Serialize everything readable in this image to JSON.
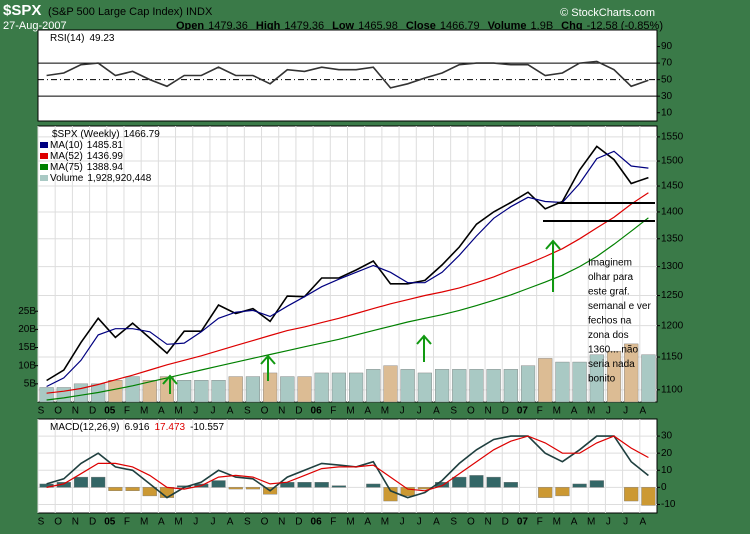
{
  "header": {
    "symbol": "$SPX",
    "name": "(S&P 500 Large Cap Index) INDX",
    "date": "27-Aug-2007",
    "copyright": "© StockCharts.com",
    "stats": [
      {
        "label": "Open",
        "value": 1479.36
      },
      {
        "label": "High",
        "value": 1479.36
      },
      {
        "label": "Low",
        "value": 1465.98
      },
      {
        "label": "Close",
        "value": 1466.79
      },
      {
        "label": "Volume",
        "value": "1.9B"
      },
      {
        "label": "Chg",
        "value": "-12.58 (-0.85%)"
      }
    ]
  },
  "chart_data": [
    {
      "type": "line",
      "title": "RSI(14)",
      "ylim": [
        0,
        110
      ],
      "yticks": [
        90,
        70,
        50,
        30,
        10
      ],
      "reference_lines": [
        70,
        30
      ],
      "midline": 50,
      "grid": false,
      "series": [
        {
          "name": "RSI(14)",
          "color": "#333333",
          "values": [
            55,
            58,
            68,
            70,
            55,
            60,
            50,
            42,
            55,
            55,
            65,
            55,
            55,
            45,
            62,
            60,
            65,
            62,
            62,
            65,
            40,
            45,
            52,
            58,
            68,
            70,
            70,
            68,
            68,
            55,
            58,
            70,
            72,
            62,
            42,
            49.23
          ]
        }
      ]
    },
    {
      "type": "line",
      "title": "$SPX (Weekly)",
      "log_scale": true,
      "grid": true,
      "ylim": [
        1082,
        1573
      ],
      "yticks": [
        1100,
        1150,
        1200,
        1250,
        1300,
        1350,
        1400,
        1450,
        1500,
        1550
      ],
      "y2lim": [
        0,
        76
      ],
      "y2ticks": [
        {
          "value": 5,
          "label": "5B"
        },
        {
          "value": 10,
          "label": "10B"
        },
        {
          "value": 15,
          "label": "15B"
        },
        {
          "value": 20,
          "label": "20B"
        },
        {
          "value": 25,
          "label": "25B"
        }
      ],
      "categories": [
        "S",
        "O",
        "N",
        "D",
        "05",
        "F",
        "M",
        "A",
        "M",
        "J",
        "J",
        "A",
        "S",
        "O",
        "N",
        "D",
        "06",
        "F",
        "M",
        "A",
        "M",
        "J",
        "J",
        "A",
        "S",
        "O",
        "N",
        "D",
        "07",
        "F",
        "M",
        "A",
        "M",
        "J",
        "J",
        "A"
      ],
      "support_levels": [
        1417,
        1383
      ],
      "annotation": [
        "Imaginem",
        "olhar para",
        "este graf.",
        "semanal e ver",
        "fechos na",
        "zona dos",
        "1360... não",
        "seria nada",
        "bonito"
      ],
      "series": [
        {
          "name": "$SPX (Weekly)",
          "color": "#000000",
          "values": [
            1114,
            1130,
            1173,
            1212,
            1181,
            1204,
            1180,
            1156,
            1191,
            1191,
            1234,
            1220,
            1228,
            1207,
            1249,
            1248,
            1280,
            1280,
            1294,
            1310,
            1270,
            1270,
            1276,
            1303,
            1335,
            1377,
            1400,
            1418,
            1438,
            1406,
            1420,
            1482,
            1530,
            1503,
            1455,
            1466.79
          ]
        },
        {
          "name": "MA(10)",
          "color": "#000080",
          "values": [
            1105,
            1118,
            1145,
            1185,
            1195,
            1195,
            1190,
            1170,
            1172,
            1190,
            1212,
            1222,
            1225,
            1215,
            1232,
            1248,
            1265,
            1278,
            1290,
            1302,
            1290,
            1272,
            1272,
            1290,
            1320,
            1355,
            1388,
            1410,
            1428,
            1420,
            1418,
            1455,
            1505,
            1520,
            1490,
            1485.81
          ]
        },
        {
          "name": "MA(52)",
          "color": "#dd0000",
          "values": [
            1095,
            1098,
            1102,
            1108,
            1115,
            1122,
            1130,
            1138,
            1145,
            1152,
            1160,
            1168,
            1176,
            1184,
            1192,
            1198,
            1205,
            1212,
            1220,
            1228,
            1236,
            1243,
            1250,
            1256,
            1263,
            1272,
            1282,
            1294,
            1305,
            1318,
            1332,
            1350,
            1370,
            1390,
            1415,
            1436.99
          ]
        },
        {
          "name": "MA(75)",
          "color": "#008000",
          "values": [
            1085,
            1088,
            1092,
            1096,
            1101,
            1106,
            1112,
            1118,
            1124,
            1130,
            1136,
            1142,
            1148,
            1154,
            1160,
            1166,
            1172,
            1178,
            1185,
            1192,
            1199,
            1206,
            1212,
            1218,
            1225,
            1233,
            1242,
            1251,
            1262,
            1273,
            1285,
            1300,
            1318,
            1340,
            1364,
            1388.94
          ]
        },
        {
          "name": "Volume",
          "kind": "bar",
          "axis": "y2",
          "color": "#a9c9c4",
          "alt_color": "#dcbc94",
          "last_label": "1,928,920,448",
          "values": [
            4,
            4,
            5,
            5,
            6,
            7,
            6,
            7,
            6,
            6,
            6,
            7,
            7,
            8,
            7,
            7,
            8,
            8,
            8,
            9,
            10,
            9,
            8,
            9,
            9,
            9,
            9,
            9,
            10,
            12,
            11,
            11,
            13,
            14,
            16,
            13
          ]
        }
      ]
    },
    {
      "type": "line",
      "title": "MACD(12,26,9)",
      "grid": true,
      "ylim": [
        -15,
        40
      ],
      "yticks": [
        30,
        20,
        10,
        0,
        -10
      ],
      "categories": [
        "S",
        "O",
        "N",
        "D",
        "05",
        "F",
        "M",
        "A",
        "M",
        "J",
        "J",
        "A",
        "S",
        "O",
        "N",
        "D",
        "06",
        "F",
        "M",
        "A",
        "M",
        "J",
        "J",
        "A",
        "S",
        "O",
        "N",
        "D",
        "07",
        "F",
        "M",
        "A",
        "M",
        "J",
        "J",
        "A"
      ],
      "series": [
        {
          "name": "MACD",
          "color": "#1f3f3f",
          "values": [
            2,
            5,
            14,
            20,
            12,
            10,
            2,
            -6,
            0,
            3,
            10,
            6,
            5,
            -2,
            6,
            10,
            14,
            13,
            12,
            15,
            -2,
            -6,
            -3,
            4,
            14,
            22,
            28,
            30,
            30,
            20,
            15,
            22,
            30,
            30,
            15,
            6.916
          ]
        },
        {
          "name": "Signal",
          "color": "#dd0000",
          "values": [
            0,
            2,
            8,
            14,
            14,
            12,
            7,
            0,
            -1,
            1,
            6,
            7,
            6,
            2,
            3,
            7,
            11,
            12,
            12,
            13,
            6,
            -1,
            -2,
            1,
            8,
            15,
            22,
            27,
            30,
            26,
            20,
            20,
            26,
            30,
            23,
            17.473
          ]
        },
        {
          "name": "Histogram",
          "kind": "bar",
          "color": "#336666",
          "alt_color": "#cc9933",
          "values": [
            2,
            3,
            6,
            6,
            -2,
            -2,
            -5,
            -6,
            1,
            2,
            4,
            -1,
            -1,
            -4,
            3,
            3,
            3,
            1,
            0,
            2,
            -8,
            -5,
            -1,
            3,
            6,
            7,
            6,
            3,
            0,
            -6,
            -5,
            2,
            4,
            0,
            -8,
            -10.557
          ]
        }
      ]
    }
  ]
}
